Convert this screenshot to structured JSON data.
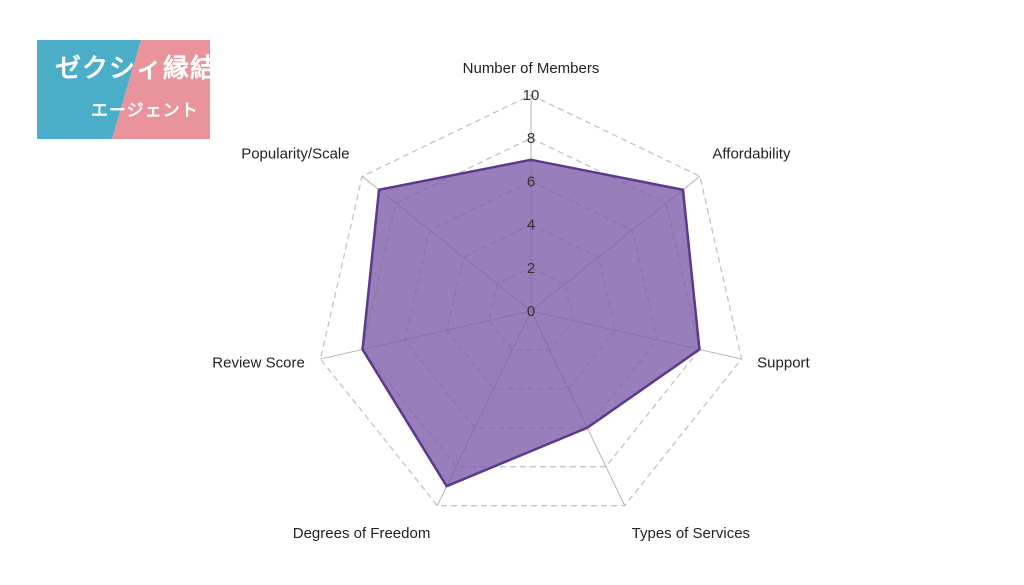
{
  "logo": {
    "title": "ゼクシィ縁結び",
    "subtitle": "エージェント",
    "colors": {
      "left": "#4aaec9",
      "right": "#e9939a"
    }
  },
  "chart_data": {
    "type": "radar",
    "title": "",
    "axes": [
      "Number of Members",
      "Affordability",
      "Support",
      "Types of Services",
      "Degrees of Freedom",
      "Review Score",
      "Popularity/Scale"
    ],
    "scale": {
      "min": 0,
      "max": 10,
      "step": 2,
      "ticks": [
        0,
        2,
        4,
        6,
        8,
        10
      ]
    },
    "series": [
      {
        "values": [
          7,
          9,
          8,
          6,
          9,
          8,
          9
        ]
      }
    ],
    "grid": true,
    "colors": {
      "fill": "#7b5aa6",
      "stroke": "#5b3a8c",
      "grid": "#c4c4c4",
      "spoke": "#b5b5b5"
    }
  }
}
